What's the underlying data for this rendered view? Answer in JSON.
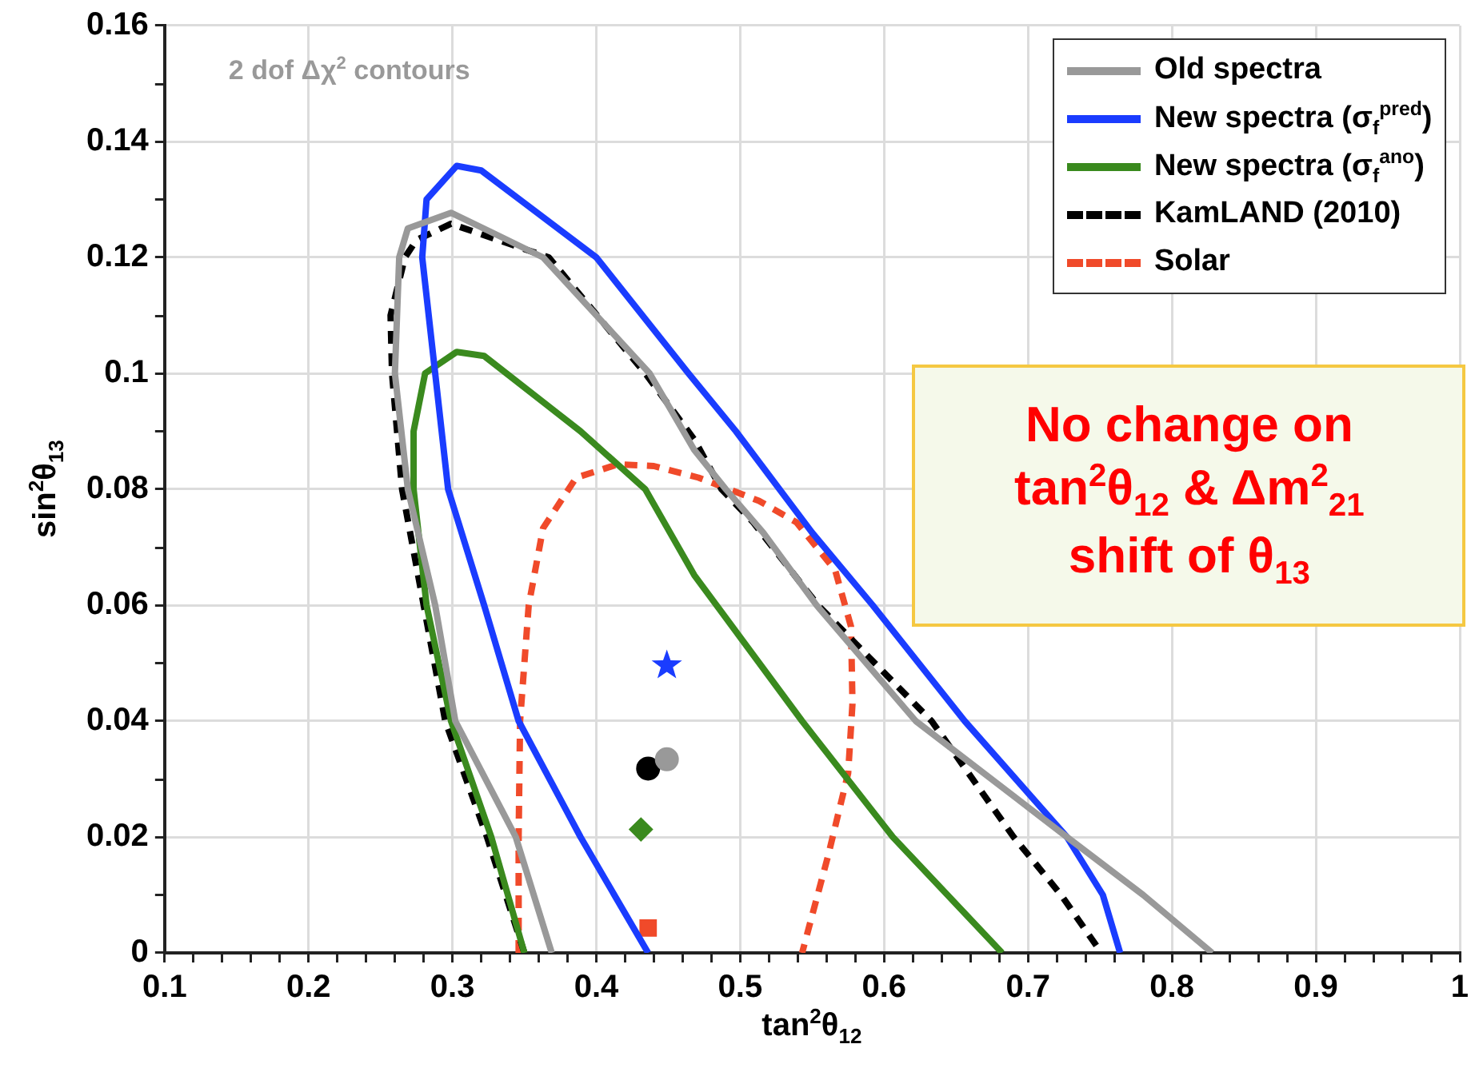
{
  "chart_data": {
    "type": "line",
    "xlabel": "tan$^{2}$θ$_{12}$",
    "ylabel": "sin$^{2}$θ$_{13}$",
    "xlim": [
      0.1,
      1
    ],
    "ylim": [
      0,
      0.16
    ],
    "xticks": [
      0.1,
      {
        "value": 0.12,
        "label": null
      },
      {
        "value": 0.14,
        "label": null
      },
      {
        "value": 0.16,
        "label": null
      },
      {
        "value": 0.18,
        "label": null
      },
      0.2,
      {
        "value": 0.22,
        "label": null
      },
      {
        "value": 0.24,
        "label": null
      },
      {
        "value": 0.26,
        "label": null
      },
      {
        "value": 0.28,
        "label": null
      },
      0.3,
      {
        "value": 0.32,
        "label": null
      },
      {
        "value": 0.34,
        "label": null
      },
      {
        "value": 0.36,
        "label": null
      },
      {
        "value": 0.38,
        "label": null
      },
      0.4,
      {
        "value": 0.42,
        "label": null
      },
      {
        "value": 0.44,
        "label": null
      },
      {
        "value": 0.46,
        "label": null
      },
      {
        "value": 0.48,
        "label": null
      },
      0.5,
      {
        "value": 0.52,
        "label": null
      },
      {
        "value": 0.54,
        "label": null
      },
      {
        "value": 0.56,
        "label": null
      },
      {
        "value": 0.58,
        "label": null
      },
      0.6,
      {
        "value": 0.62,
        "label": null
      },
      {
        "value": 0.64,
        "label": null
      },
      {
        "value": 0.66,
        "label": null
      },
      {
        "value": 0.68,
        "label": null
      },
      0.7,
      {
        "value": 0.72,
        "label": null
      },
      {
        "value": 0.74,
        "label": null
      },
      {
        "value": 0.76,
        "label": null
      },
      {
        "value": 0.78,
        "label": null
      },
      0.8,
      {
        "value": 0.82,
        "label": null
      },
      {
        "value": 0.84,
        "label": null
      },
      {
        "value": 0.86,
        "label": null
      },
      {
        "value": 0.88,
        "label": null
      },
      0.9,
      {
        "value": 0.92,
        "label": null
      },
      {
        "value": 0.94,
        "label": null
      },
      {
        "value": 0.96,
        "label": null
      },
      {
        "value": 0.98,
        "label": null
      },
      1
    ],
    "yticks": [
      0,
      {
        "value": 0.01,
        "label": null
      },
      0.02,
      {
        "value": 0.03,
        "label": null
      },
      0.04,
      {
        "value": 0.05,
        "label": null
      },
      0.06,
      {
        "value": 0.07,
        "label": null
      },
      0.08,
      {
        "value": 0.09,
        "label": null
      },
      0.1,
      {
        "value": 0.11,
        "label": null
      },
      0.12,
      {
        "value": 0.13,
        "label": null
      },
      0.14,
      {
        "value": 0.15,
        "label": null
      },
      0.16
    ],
    "grid": true,
    "legend": "top right",
    "annotations": [
      "2 dof Δχ$^{2}$ contours",
      "No change on",
      "tan$^{2}$θ$_{12}$ & Δm$^{2}$$_{21}$",
      "shift of θ$_{13}$"
    ],
    "series": [
      {
        "name": "Old spectra",
        "type": "line",
        "color": "#999999",
        "line_style": "solid",
        "marker": "none",
        "x": [
          0.369,
          0.344,
          0.302,
          0.288,
          0.269,
          0.26,
          0.263,
          0.269,
          0.299,
          0.33,
          0.363,
          0.437,
          0.468,
          0.49,
          0.516,
          0.553,
          0.622,
          0.727,
          0.78,
          0.828
        ],
        "values": [
          0,
          0.02,
          0.04,
          0.06,
          0.08,
          0.1,
          0.12,
          0.125,
          0.1277,
          0.124,
          0.12,
          0.1,
          0.0868,
          0.08,
          0.0725,
          0.06,
          0.04,
          0.02,
          0.01,
          0
        ]
      },
      {
        "name": "New spectra (σ$_{f}$$^{pred}$)",
        "type": "line",
        "color": "#1a3cff",
        "line_style": "solid",
        "marker": "none",
        "x": [
          0.436,
          0.389,
          0.346,
          0.322,
          0.297,
          0.288,
          0.279,
          0.282,
          0.303,
          0.32,
          0.4,
          0.464,
          0.497,
          0.55,
          0.592,
          0.656,
          0.727,
          0.752,
          0.764
        ],
        "values": [
          0,
          0.02,
          0.04,
          0.06,
          0.08,
          0.1,
          0.12,
          0.13,
          0.1358,
          0.135,
          0.12,
          0.1,
          0.09,
          0.0725,
          0.06,
          0.04,
          0.02,
          0.01,
          0
        ]
      },
      {
        "name": "New spectra (σ$_{f}$$^{ano}$)",
        "type": "line",
        "color": "#3a8a1e",
        "line_style": "solid",
        "marker": "none",
        "x": [
          0.35,
          0.327,
          0.299,
          0.282,
          0.273,
          0.273,
          0.281,
          0.303,
          0.322,
          0.389,
          0.434,
          0.468,
          0.543,
          0.606,
          0.682
        ],
        "values": [
          0,
          0.02,
          0.04,
          0.06,
          0.08,
          0.09,
          0.1,
          0.1037,
          0.103,
          0.09,
          0.08,
          0.0652,
          0.04,
          0.02,
          0
        ]
      },
      {
        "name": "KamLAND (2010)",
        "type": "line",
        "color": "#000000",
        "line_style": "dashed",
        "marker": "none",
        "x": [
          0.35,
          0.324,
          0.295,
          0.28,
          0.265,
          0.258,
          0.257,
          0.267,
          0.275,
          0.299,
          0.367,
          0.434,
          0.468,
          0.487,
          0.509,
          0.554,
          0.633,
          0.69,
          0.723,
          0.751
        ],
        "values": [
          0,
          0.02,
          0.04,
          0.06,
          0.08,
          0.1,
          0.11,
          0.12,
          0.123,
          0.1258,
          0.12,
          0.1,
          0.0886,
          0.08,
          0.0743,
          0.06,
          0.04,
          0.02,
          0.01,
          0
        ]
      },
      {
        "name": "Solar",
        "type": "line",
        "color": "#f04a2a",
        "line_style": "dashed",
        "marker": "none",
        "x": [
          0.346,
          0.346,
          0.347,
          0.353,
          0.363,
          0.386,
          0.415,
          0.44,
          0.471,
          0.513,
          0.539,
          0.566,
          0.577,
          0.578,
          0.575,
          0.561,
          0.543
        ],
        "values": [
          0,
          0.02,
          0.04,
          0.06,
          0.0733,
          0.082,
          0.0843,
          0.084,
          0.082,
          0.078,
          0.0743,
          0.066,
          0.0563,
          0.043,
          0.031,
          0.0167,
          0
        ]
      },
      {
        "type": "scatter",
        "color": "#1a3cff",
        "marker": "star",
        "x": [
          0.449
        ],
        "values": [
          0.0496
        ]
      },
      {
        "type": "scatter",
        "color": "#999999",
        "marker": "circle",
        "x": [
          0.449
        ],
        "values": [
          0.0334
        ]
      },
      {
        "type": "scatter",
        "color": "#000000",
        "marker": "circle",
        "x": [
          0.436
        ],
        "values": [
          0.0318
        ]
      },
      {
        "type": "scatter",
        "color": "#3a8a1e",
        "marker": "diamond",
        "x": [
          0.431
        ],
        "values": [
          0.0213
        ]
      },
      {
        "type": "scatter",
        "color": "#f04a2a",
        "marker": "square",
        "x": [
          0.436
        ],
        "values": [
          0.0043
        ]
      }
    ]
  }
}
